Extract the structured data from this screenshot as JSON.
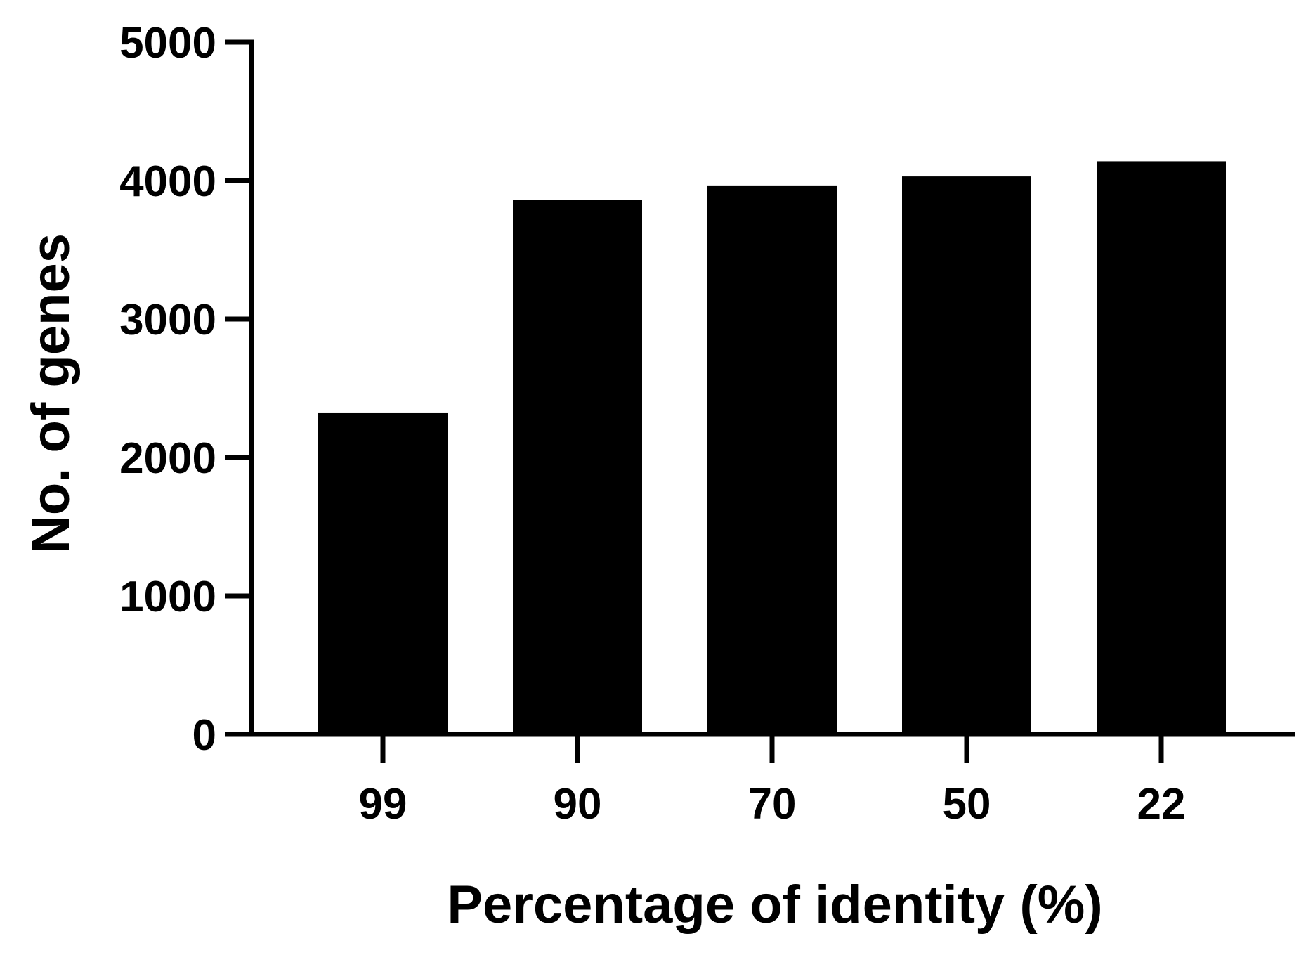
{
  "chart_data": {
    "type": "bar",
    "categories": [
      "99",
      "90",
      "70",
      "50",
      "22"
    ],
    "values": [
      2320,
      3860,
      3965,
      4030,
      4140
    ],
    "xlabel": "Percentage of identity (%)",
    "ylabel": "No. of genes",
    "ylim": [
      0,
      5000
    ],
    "yticks": [
      0,
      1000,
      2000,
      3000,
      4000,
      5000
    ],
    "grid": false,
    "legend": "none",
    "bar_color": "#000000",
    "axis_color": "#000000"
  }
}
